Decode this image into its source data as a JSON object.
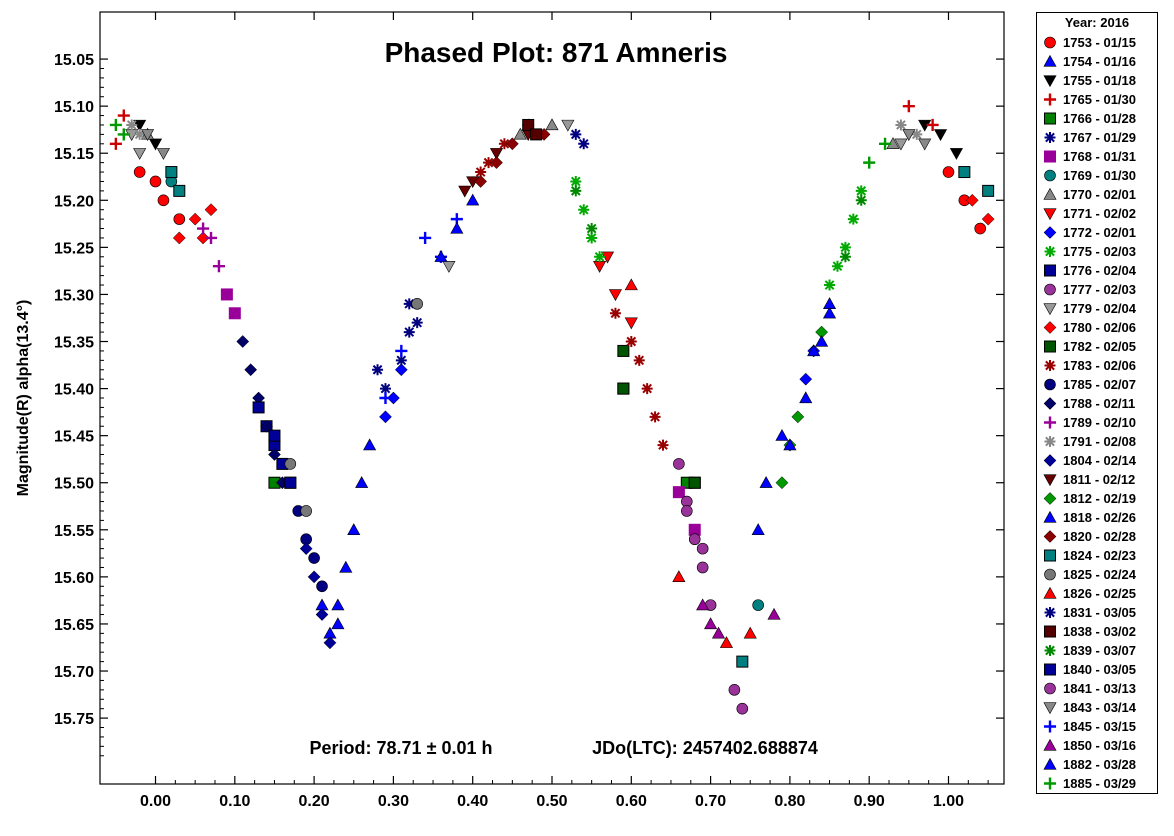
{
  "chart_data": {
    "type": "scatter",
    "title": "Phased Plot: 871 Amneris",
    "ylabel": "Magnitude(R) alpha(13.4°)",
    "xlabel": "",
    "xlim": [
      -0.07,
      1.07
    ],
    "ylim": [
      15.82,
      15.0
    ],
    "y_inverted": true,
    "x_ticks": [
      "0.00",
      "0.10",
      "0.20",
      "0.30",
      "0.40",
      "0.50",
      "0.60",
      "0.70",
      "0.80",
      "0.90",
      "1.00"
    ],
    "y_ticks": [
      "15.05",
      "15.10",
      "15.15",
      "15.20",
      "15.25",
      "15.30",
      "15.35",
      "15.40",
      "15.45",
      "15.50",
      "15.55",
      "15.60",
      "15.65",
      "15.70",
      "15.75"
    ],
    "annotation_period": "Period: 78.71 ± 0.01 h",
    "annotation_epoch": "JDo(LTC): 2457402.688874",
    "grid": false,
    "legend_position": "right",
    "legend_title": "Year: 2016",
    "series": [
      {
        "name": "1753 - 01/15",
        "color": "#ff0000",
        "marker": "circle",
        "points": [
          [
            -0.02,
            15.17
          ],
          [
            0.0,
            15.18
          ],
          [
            0.01,
            15.2
          ],
          [
            0.03,
            15.22
          ],
          [
            1.0,
            15.17
          ],
          [
            1.02,
            15.2
          ],
          [
            1.04,
            15.23
          ]
        ]
      },
      {
        "name": "1754 - 01/16",
        "color": "#0000ff",
        "marker": "triangle",
        "points": [
          [
            0.21,
            15.63
          ],
          [
            0.22,
            15.66
          ],
          [
            0.23,
            15.65
          ],
          [
            0.76,
            15.55
          ],
          [
            0.77,
            15.5
          ],
          [
            0.79,
            15.45
          ]
        ]
      },
      {
        "name": "1755 - 01/18",
        "color": "#000000",
        "marker": "triangle-down",
        "points": [
          [
            -0.02,
            15.12
          ],
          [
            0.0,
            15.14
          ],
          [
            0.97,
            15.12
          ],
          [
            0.99,
            15.13
          ],
          [
            1.01,
            15.15
          ]
        ]
      },
      {
        "name": "1765 - 01/30",
        "color": "#cc0000",
        "marker": "plus",
        "points": [
          [
            -0.05,
            15.14
          ],
          [
            -0.04,
            15.11
          ],
          [
            0.95,
            15.1
          ],
          [
            0.98,
            15.12
          ]
        ]
      },
      {
        "name": "1766 - 01/28",
        "color": "#008000",
        "marker": "square-filled",
        "points": [
          [
            0.15,
            15.5
          ],
          [
            0.59,
            15.4
          ],
          [
            0.67,
            15.5
          ],
          [
            0.68,
            15.5
          ]
        ]
      },
      {
        "name": "1767 - 01/29",
        "color": "#000080",
        "marker": "star",
        "points": [
          [
            0.32,
            15.31
          ],
          [
            0.33,
            15.33
          ],
          [
            0.53,
            15.13
          ],
          [
            0.54,
            15.14
          ]
        ]
      },
      {
        "name": "1768 - 01/31",
        "color": "#990099",
        "marker": "square",
        "points": [
          [
            0.09,
            15.3
          ],
          [
            0.1,
            15.32
          ],
          [
            0.66,
            15.51
          ],
          [
            0.68,
            15.55
          ]
        ]
      },
      {
        "name": "1769 - 01/30",
        "color": "#008080",
        "marker": "circle",
        "points": [
          [
            0.02,
            15.18
          ],
          [
            0.03,
            15.19
          ],
          [
            0.76,
            15.63
          ]
        ]
      },
      {
        "name": "1770 - 02/01",
        "color": "#888888",
        "marker": "triangle",
        "points": [
          [
            -0.01,
            15.13
          ],
          [
            0.46,
            15.13
          ],
          [
            0.5,
            15.12
          ],
          [
            0.93,
            15.14
          ]
        ]
      },
      {
        "name": "1771 - 02/02",
        "color": "#ff0000",
        "marker": "triangle-down",
        "points": [
          [
            0.56,
            15.27
          ],
          [
            0.57,
            15.26
          ],
          [
            0.58,
            15.3
          ],
          [
            0.6,
            15.33
          ]
        ]
      },
      {
        "name": "1772 - 02/01",
        "color": "#0000ff",
        "marker": "diamond",
        "points": [
          [
            0.29,
            15.43
          ],
          [
            0.3,
            15.41
          ],
          [
            0.31,
            15.38
          ],
          [
            0.82,
            15.39
          ],
          [
            0.83,
            15.36
          ]
        ]
      },
      {
        "name": "1775 - 02/03",
        "color": "#00aa00",
        "marker": "star",
        "points": [
          [
            0.53,
            15.18
          ],
          [
            0.54,
            15.21
          ],
          [
            0.55,
            15.24
          ],
          [
            0.56,
            15.26
          ],
          [
            0.85,
            15.29
          ],
          [
            0.86,
            15.27
          ],
          [
            0.87,
            15.25
          ],
          [
            0.88,
            15.22
          ],
          [
            0.89,
            15.19
          ]
        ]
      },
      {
        "name": "1776 - 02/04",
        "color": "#000099",
        "marker": "square-filled",
        "points": [
          [
            0.14,
            15.44
          ],
          [
            0.15,
            15.46
          ],
          [
            0.16,
            15.48
          ],
          [
            0.17,
            15.5
          ]
        ]
      },
      {
        "name": "1777 - 02/03",
        "color": "#993399",
        "marker": "circle",
        "points": [
          [
            0.66,
            15.48
          ],
          [
            0.67,
            15.52
          ],
          [
            0.68,
            15.56
          ],
          [
            0.69,
            15.59
          ],
          [
            0.7,
            15.63
          ]
        ]
      },
      {
        "name": "1779 - 02/04",
        "color": "#999999",
        "marker": "triangle-down",
        "points": [
          [
            -0.03,
            15.13
          ],
          [
            -0.02,
            15.15
          ],
          [
            0.37,
            15.27
          ],
          [
            0.52,
            15.12
          ],
          [
            0.94,
            15.14
          ]
        ]
      },
      {
        "name": "1780 - 02/06",
        "color": "#ff0000",
        "marker": "diamond",
        "points": [
          [
            0.03,
            15.24
          ],
          [
            0.05,
            15.22
          ],
          [
            0.06,
            15.24
          ],
          [
            0.07,
            15.21
          ],
          [
            1.03,
            15.2
          ],
          [
            1.05,
            15.22
          ]
        ]
      },
      {
        "name": "1782 - 02/05",
        "color": "#005500",
        "marker": "square-filled",
        "points": [
          [
            0.59,
            15.36
          ],
          [
            0.59,
            15.4
          ],
          [
            0.68,
            15.5
          ]
        ]
      },
      {
        "name": "1783 - 02/06",
        "color": "#990000",
        "marker": "star",
        "points": [
          [
            0.41,
            15.17
          ],
          [
            0.42,
            15.16
          ],
          [
            0.44,
            15.14
          ],
          [
            0.58,
            15.32
          ],
          [
            0.6,
            15.35
          ],
          [
            0.61,
            15.37
          ],
          [
            0.62,
            15.4
          ],
          [
            0.63,
            15.43
          ],
          [
            0.64,
            15.46
          ]
        ]
      },
      {
        "name": "1785 - 02/07",
        "color": "#000080",
        "marker": "circle",
        "points": [
          [
            0.18,
            15.53
          ],
          [
            0.19,
            15.56
          ],
          [
            0.2,
            15.58
          ],
          [
            0.21,
            15.61
          ]
        ]
      },
      {
        "name": "1788 - 02/11",
        "color": "#000066",
        "marker": "diamond",
        "points": [
          [
            0.11,
            15.35
          ],
          [
            0.12,
            15.38
          ],
          [
            0.13,
            15.41
          ],
          [
            0.14,
            15.44
          ],
          [
            0.15,
            15.47
          ],
          [
            0.16,
            15.5
          ]
        ]
      },
      {
        "name": "1789 - 02/10",
        "color": "#990099",
        "marker": "plus",
        "points": [
          [
            0.06,
            15.23
          ],
          [
            0.07,
            15.24
          ],
          [
            0.08,
            15.27
          ]
        ]
      },
      {
        "name": "1791 - 02/08",
        "color": "#888888",
        "marker": "star",
        "points": [
          [
            -0.03,
            15.12
          ],
          [
            -0.02,
            15.13
          ],
          [
            0.94,
            15.12
          ],
          [
            0.96,
            15.13
          ]
        ]
      },
      {
        "name": "1804 - 02/14",
        "color": "#000099",
        "marker": "diamond",
        "points": [
          [
            0.19,
            15.57
          ],
          [
            0.2,
            15.6
          ],
          [
            0.21,
            15.64
          ],
          [
            0.22,
            15.67
          ]
        ]
      },
      {
        "name": "1811 - 02/12",
        "color": "#660000",
        "marker": "triangle-down",
        "points": [
          [
            0.39,
            15.19
          ],
          [
            0.4,
            15.18
          ],
          [
            0.43,
            15.15
          ],
          [
            0.47,
            15.13
          ]
        ]
      },
      {
        "name": "1812 - 02/19",
        "color": "#009900",
        "marker": "diamond",
        "points": [
          [
            0.79,
            15.5
          ],
          [
            0.8,
            15.46
          ],
          [
            0.81,
            15.43
          ],
          [
            0.84,
            15.34
          ]
        ]
      },
      {
        "name": "1818 - 02/26",
        "color": "#0000ff",
        "marker": "triangle",
        "points": [
          [
            0.23,
            15.63
          ],
          [
            0.24,
            15.59
          ],
          [
            0.25,
            15.55
          ],
          [
            0.26,
            15.5
          ],
          [
            0.27,
            15.46
          ],
          [
            0.8,
            15.46
          ],
          [
            0.82,
            15.41
          ],
          [
            0.84,
            15.35
          ],
          [
            0.85,
            15.31
          ]
        ]
      },
      {
        "name": "1820 - 02/28",
        "color": "#8b0000",
        "marker": "diamond",
        "points": [
          [
            0.41,
            15.18
          ],
          [
            0.43,
            15.16
          ],
          [
            0.45,
            15.14
          ],
          [
            0.47,
            15.12
          ],
          [
            0.49,
            15.13
          ]
        ]
      },
      {
        "name": "1824 - 02/23",
        "color": "#008080",
        "marker": "square-filled",
        "points": [
          [
            0.02,
            15.17
          ],
          [
            0.03,
            15.19
          ],
          [
            0.74,
            15.69
          ],
          [
            1.02,
            15.17
          ],
          [
            1.05,
            15.19
          ]
        ]
      },
      {
        "name": "1825 - 02/24",
        "color": "#777777",
        "marker": "circle",
        "points": [
          [
            0.17,
            15.48
          ],
          [
            0.19,
            15.53
          ],
          [
            0.33,
            15.31
          ]
        ]
      },
      {
        "name": "1826 - 02/25",
        "color": "#ff0000",
        "marker": "triangle",
        "points": [
          [
            0.6,
            15.29
          ],
          [
            0.66,
            15.6
          ],
          [
            0.72,
            15.67
          ],
          [
            0.75,
            15.66
          ]
        ]
      },
      {
        "name": "1831 - 03/05",
        "color": "#000080",
        "marker": "star",
        "points": [
          [
            0.28,
            15.38
          ],
          [
            0.29,
            15.4
          ],
          [
            0.31,
            15.37
          ],
          [
            0.32,
            15.34
          ]
        ]
      },
      {
        "name": "1838 - 03/02",
        "color": "#550000",
        "marker": "square-filled",
        "points": [
          [
            0.47,
            15.12
          ],
          [
            0.48,
            15.13
          ]
        ]
      },
      {
        "name": "1839 - 03/07",
        "color": "#008800",
        "marker": "star",
        "points": [
          [
            0.53,
            15.19
          ],
          [
            0.55,
            15.23
          ],
          [
            0.87,
            15.26
          ],
          [
            0.89,
            15.2
          ]
        ]
      },
      {
        "name": "1840 - 03/05",
        "color": "#000099",
        "marker": "square-filled",
        "points": [
          [
            0.13,
            15.42
          ],
          [
            0.15,
            15.45
          ],
          [
            0.17,
            15.5
          ]
        ]
      },
      {
        "name": "1841 - 03/13",
        "color": "#993399",
        "marker": "circle",
        "points": [
          [
            0.67,
            15.53
          ],
          [
            0.69,
            15.57
          ],
          [
            0.73,
            15.72
          ],
          [
            0.74,
            15.74
          ]
        ]
      },
      {
        "name": "1843 - 03/14",
        "color": "#888888",
        "marker": "triangle-down",
        "points": [
          [
            -0.01,
            15.13
          ],
          [
            0.01,
            15.15
          ],
          [
            0.95,
            15.13
          ],
          [
            0.97,
            15.14
          ]
        ]
      },
      {
        "name": "1845 - 03/15",
        "color": "#0000ff",
        "marker": "plus",
        "points": [
          [
            0.29,
            15.41
          ],
          [
            0.31,
            15.36
          ],
          [
            0.34,
            15.24
          ],
          [
            0.36,
            15.26
          ],
          [
            0.38,
            15.22
          ]
        ]
      },
      {
        "name": "1850 - 03/16",
        "color": "#990099",
        "marker": "triangle",
        "points": [
          [
            0.69,
            15.63
          ],
          [
            0.7,
            15.65
          ],
          [
            0.71,
            15.66
          ],
          [
            0.78,
            15.64
          ]
        ]
      },
      {
        "name": "1882 - 03/28",
        "color": "#0000ff",
        "marker": "triangle",
        "points": [
          [
            0.36,
            15.26
          ],
          [
            0.38,
            15.23
          ],
          [
            0.4,
            15.2
          ],
          [
            0.83,
            15.36
          ],
          [
            0.85,
            15.32
          ]
        ]
      },
      {
        "name": "1885 - 03/29",
        "color": "#009900",
        "marker": "plus",
        "points": [
          [
            -0.05,
            15.12
          ],
          [
            -0.04,
            15.13
          ],
          [
            0.9,
            15.16
          ],
          [
            0.92,
            15.14
          ]
        ]
      }
    ]
  }
}
